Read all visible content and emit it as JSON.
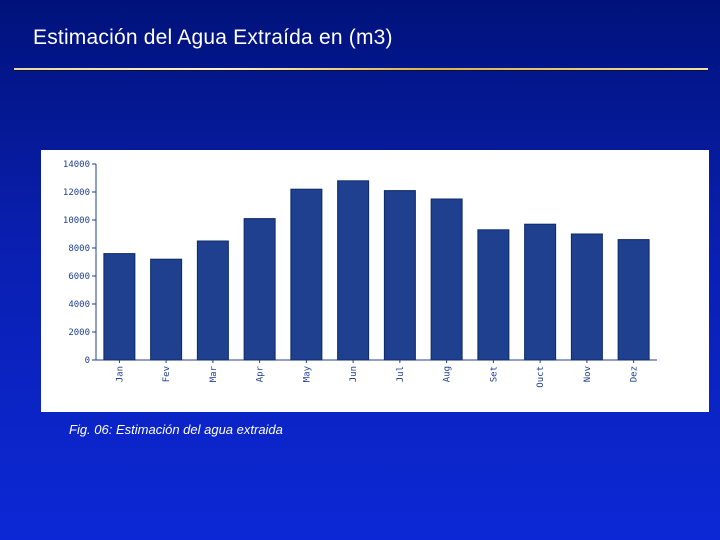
{
  "slide": {
    "title": "Estimación del Agua Extraída en  (m3)",
    "caption": "Fig. 06: Estimación del agua extraida"
  },
  "colors": {
    "background": "#0a1fb0",
    "bar": "#1f3f8f",
    "bar_stroke": "#0f2a6a",
    "axis": "#1f3f8f",
    "tick_text": "#1f3f8f",
    "panel": "#ffffff"
  },
  "chart_data": {
    "type": "bar",
    "title": "",
    "xlabel": "",
    "ylabel": "",
    "ylim": [
      0,
      14000
    ],
    "yticks": [
      0,
      2000,
      4000,
      6000,
      8000,
      10000,
      12000,
      14000
    ],
    "ytick_labels": [
      "0",
      "2000",
      "4000",
      "6000",
      "8000",
      "10000",
      "12000",
      "14000"
    ],
    "grid": false,
    "categories": [
      "Jan",
      "Fev",
      "Mar",
      "Apr",
      "May",
      "Jun",
      "Jul",
      "Aug",
      "Set",
      "Ouct",
      "Nov",
      "Dez"
    ],
    "values": [
      7600,
      7200,
      8500,
      10100,
      12200,
      12800,
      12100,
      11500,
      9300,
      9700,
      9000,
      8600
    ]
  }
}
